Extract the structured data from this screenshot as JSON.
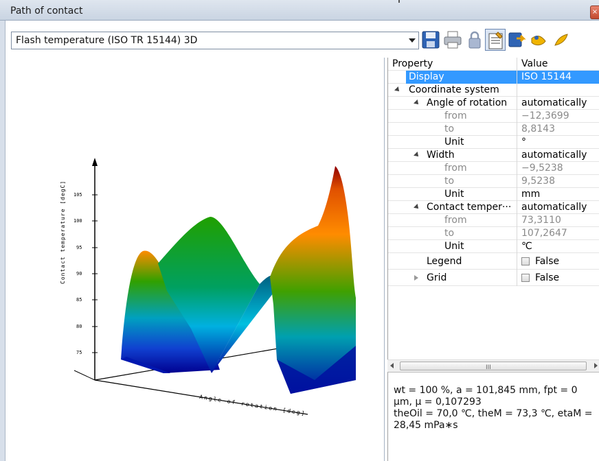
{
  "window": {
    "title": "Path of contact",
    "close_glyph": "×"
  },
  "toolbar": {
    "view_select": "Flash temperature (ISO TR 15144) 3D",
    "buttons": [
      {
        "name": "save-icon"
      },
      {
        "name": "print-icon"
      },
      {
        "name": "lock-icon"
      },
      {
        "name": "properties-icon",
        "pressed": true
      },
      {
        "name": "export-icon"
      },
      {
        "name": "zoom-in-icon"
      },
      {
        "name": "zoom-out-icon"
      }
    ]
  },
  "plot": {
    "z_label": "Contact temperature [degC]",
    "x_label": "Angle of rotation [deg]",
    "z_ticks": [
      "105",
      "100",
      "95",
      "90",
      "85",
      "80",
      "75"
    ],
    "colors": {
      "low": "#0000a0",
      "mid": "#00a000",
      "high": "#ff7a00",
      "peak": "#8b0000"
    }
  },
  "properties": {
    "header": {
      "property": "Property",
      "value": "Value"
    },
    "rows": [
      {
        "label": "Display",
        "value": "ISO 15144",
        "selected": true
      },
      {
        "label": "Coordinate system",
        "value": ""
      },
      {
        "label": "Angle of rotation",
        "value": "automatically"
      },
      {
        "label": "from",
        "value": "−12,3699"
      },
      {
        "label": "to",
        "value": "8,8143"
      },
      {
        "label": "Unit",
        "value": "°"
      },
      {
        "label": "Width",
        "value": "automatically"
      },
      {
        "label": "from",
        "value": "−9,5238"
      },
      {
        "label": "to",
        "value": "9,5238"
      },
      {
        "label": "Unit",
        "value": "mm"
      },
      {
        "label": "Contact temper···",
        "value": "automatically"
      },
      {
        "label": "from",
        "value": "73,3110"
      },
      {
        "label": "to",
        "value": "107,2647"
      },
      {
        "label": "Unit",
        "value": "℃"
      },
      {
        "label": "Legend",
        "value": "False"
      },
      {
        "label": "Grid",
        "value": "False"
      }
    ]
  },
  "scrollbar": {
    "grip": "III"
  },
  "info": {
    "line1": "wt = 100 %, a = 101,845 mm, fpt = 0 µm, µ = 0,107293",
    "line2": "theOil = 70,0 ℃, theM = 73,3 ℃, etaM = 28,45 mPa∗s"
  }
}
